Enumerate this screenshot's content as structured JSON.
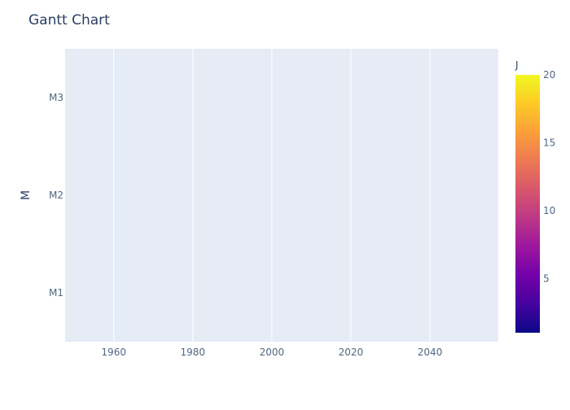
{
  "chart_data": {
    "type": "bar",
    "orientation": "horizontal",
    "title": "Gantt Chart",
    "xlabel": "",
    "ylabel": "M",
    "xlim": [
      1947.7,
      2057.3
    ],
    "x_ticks": [
      1960,
      1980,
      2000,
      2020,
      2040
    ],
    "x_tick_labels": [
      "1960",
      "1980",
      "2000",
      "2020",
      "2040"
    ],
    "categories": [
      "M1",
      "M2",
      "M3"
    ],
    "series": [],
    "grid": true,
    "colorbar": {
      "title": "J",
      "range": [
        1,
        20
      ],
      "ticks": [
        5,
        10,
        15,
        20
      ],
      "tick_labels": [
        "5",
        "10",
        "15",
        "20"
      ],
      "colorscale": [
        "#0d0887",
        "#46039f",
        "#7201a8",
        "#9c179e",
        "#bd3786",
        "#d8576b",
        "#ed7953",
        "#fb9f3a",
        "#fdca26",
        "#f0f921"
      ]
    },
    "colors": {
      "plot_background": "#e5ecf6",
      "grid": "#ffffff",
      "text": "#2a3f5f",
      "tick_text": "#506784"
    }
  }
}
